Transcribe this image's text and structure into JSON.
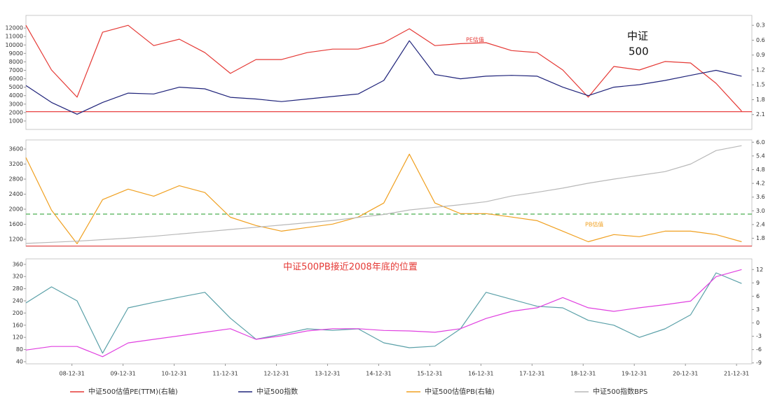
{
  "chart_data": [
    {
      "type": "line",
      "x": [
        2008.1,
        2008.6,
        2009.1,
        2009.6,
        2010.1,
        2010.6,
        2011.1,
        2011.6,
        2012.1,
        2012.6,
        2013.1,
        2013.6,
        2014.1,
        2014.6,
        2015.1,
        2015.6,
        2016.1,
        2016.6,
        2017.1,
        2017.6,
        2018.1,
        2018.6,
        2019.1,
        2019.6,
        2020.1,
        2020.6,
        2021.1,
        2021.6,
        2022.1
      ],
      "xlim": [
        2008.1,
        2022.3
      ],
      "ylim": [
        0,
        13500
      ],
      "yticks": [
        1000,
        2000,
        3000,
        4000,
        5000,
        6000,
        7000,
        8000,
        9000,
        10000,
        11000,
        12000
      ],
      "y2lim": [
        2.4,
        0.1
      ],
      "y2ticks": [
        0.3,
        0.6,
        0.9,
        1.2,
        1.5,
        1.8,
        2.1
      ],
      "hlines": [
        {
          "value": 2100,
          "color": "#e84040"
        }
      ],
      "annotations": [
        "PE估值",
        "中证",
        "500"
      ],
      "series": [
        {
          "name": "中证500估值PE(TTM)(右轴)",
          "color": "#e53935",
          "axis": "y2",
          "values": [
            0.3,
            1.2,
            1.75,
            0.44,
            0.3,
            0.71,
            0.58,
            0.85,
            1.27,
            0.99,
            0.99,
            0.85,
            0.78,
            0.78,
            0.65,
            0.37,
            0.71,
            0.67,
            0.65,
            0.81,
            0.85,
            1.2,
            1.75,
            1.13,
            1.2,
            1.03,
            1.06,
            1.47,
            2.03
          ]
        },
        {
          "name": "中证500指数",
          "color": "#1f237a",
          "values": [
            5200,
            3200,
            1800,
            3200,
            4300,
            4200,
            5000,
            4800,
            3800,
            3600,
            3300,
            3600,
            3900,
            4200,
            5800,
            10500,
            6500,
            6000,
            6300,
            6400,
            6300,
            5000,
            4000,
            5000,
            5300,
            5800,
            6400,
            7000,
            6300
          ]
        }
      ]
    },
    {
      "type": "line",
      "x": [
        2008.1,
        2008.6,
        2009.1,
        2009.6,
        2010.1,
        2010.6,
        2011.1,
        2011.6,
        2012.1,
        2012.6,
        2013.1,
        2013.6,
        2014.1,
        2014.6,
        2015.1,
        2015.6,
        2016.1,
        2016.6,
        2017.1,
        2017.6,
        2018.1,
        2018.6,
        2019.1,
        2019.6,
        2020.1,
        2020.6,
        2021.1,
        2021.6,
        2022.1
      ],
      "xlim": [
        2008.1,
        2022.3
      ],
      "ylim": [
        1014,
        3842
      ],
      "yticks": [
        1200,
        1600,
        2000,
        2400,
        2800,
        3200,
        3600
      ],
      "y2lim": [
        1.45,
        6.1
      ],
      "y2ticks": [
        1.8,
        2.4,
        {
          "value": 3,
          "label": "3.0"
        },
        3.6,
        4.2,
        4.8,
        5.4,
        {
          "value": 6,
          "label": "6.0"
        }
      ],
      "hlines": [
        {
          "value": 1870,
          "color": "#4caf50",
          "dashed": true
        },
        {
          "value": 1020,
          "color": "#e84040"
        }
      ],
      "annotations": [
        "PB估值"
      ],
      "series": [
        {
          "name": "中证500估值PB(右轴)",
          "color": "#f0a020",
          "axis": "y2",
          "values": [
            5.33,
            3.03,
            1.56,
            3.49,
            3.95,
            3.64,
            4.1,
            3.8,
            2.72,
            2.36,
            2.11,
            2.27,
            2.42,
            2.73,
            3.34,
            5.48,
            3.34,
            2.88,
            2.88,
            2.73,
            2.57,
            2.11,
            1.65,
            1.96,
            1.87,
            2.11,
            2.11,
            1.96,
            1.65
          ]
        },
        {
          "name": "中证500指数BPS",
          "color": "#b8b8b8",
          "values": [
            1090,
            1120,
            1150,
            1190,
            1230,
            1280,
            1340,
            1400,
            1460,
            1520,
            1580,
            1640,
            1700,
            1780,
            1860,
            1980,
            2050,
            2120,
            2200,
            2350,
            2450,
            2560,
            2690,
            2800,
            2900,
            3000,
            3200,
            3560,
            3690
          ]
        }
      ]
    },
    {
      "type": "line",
      "title": "中证500PB接近2008年底的位置",
      "x": [
        2008.1,
        2008.6,
        2009.1,
        2009.6,
        2010.1,
        2010.6,
        2011.1,
        2011.6,
        2012.1,
        2012.6,
        2013.1,
        2013.6,
        2014.1,
        2014.6,
        2015.1,
        2015.6,
        2016.1,
        2016.6,
        2017.1,
        2017.6,
        2018.1,
        2018.6,
        2019.1,
        2019.6,
        2020.1,
        2020.6,
        2021.1,
        2021.6,
        2022.1
      ],
      "xlim": [
        2008.1,
        2022.3
      ],
      "xticks": [
        {
          "value": 2009,
          "label": "08-12-31"
        },
        {
          "value": 2010,
          "label": "09-12-31"
        },
        {
          "value": 2011,
          "label": "10-12-31"
        },
        {
          "value": 2012,
          "label": "11-12-31"
        },
        {
          "value": 2013,
          "label": "12-12-31"
        },
        {
          "value": 2014,
          "label": "13-12-31"
        },
        {
          "value": 2015,
          "label": "14-12-31"
        },
        {
          "value": 2016,
          "label": "15-12-31"
        },
        {
          "value": 2017,
          "label": "16-12-31"
        },
        {
          "value": 2018,
          "label": "17-12-31"
        },
        {
          "value": 2019,
          "label": "18-12-31"
        },
        {
          "value": 2020,
          "label": "19-12-31"
        },
        {
          "value": 2021,
          "label": "20-12-31"
        },
        {
          "value": 2022,
          "label": "21-12-31"
        }
      ],
      "ylim": [
        33,
        378
      ],
      "yticks": [
        40,
        80,
        120,
        160,
        200,
        240,
        280,
        320,
        360
      ],
      "y2lim": [
        -9.2,
        14.4
      ],
      "y2ticks": [
        -9,
        -6,
        -3,
        0,
        3,
        6,
        9,
        12
      ],
      "series": [
        {
          "color": "#5aa0a8",
          "values": [
            233,
            286,
            240,
            68,
            217,
            235,
            252,
            268,
            183,
            114,
            130,
            148,
            143,
            148,
            102,
            86,
            91,
            148,
            268,
            245,
            222,
            217,
            176,
            160,
            120,
            148,
            194,
            332,
            297
          ]
        },
        {
          "color": "#e040e0",
          "axis": "y2",
          "values": [
            -6.1,
            -5.3,
            -5.3,
            -7.6,
            -4.5,
            -3.7,
            -2.9,
            -2.1,
            -1.3,
            -3.7,
            -2.9,
            -1.8,
            -1.3,
            -1.3,
            -1.7,
            -1.8,
            -2.1,
            -1.3,
            1.0,
            2.6,
            3.4,
            5.7,
            3.4,
            2.6,
            3.4,
            4.1,
            4.9,
            10.4,
            12.0
          ]
        }
      ]
    }
  ]
}
